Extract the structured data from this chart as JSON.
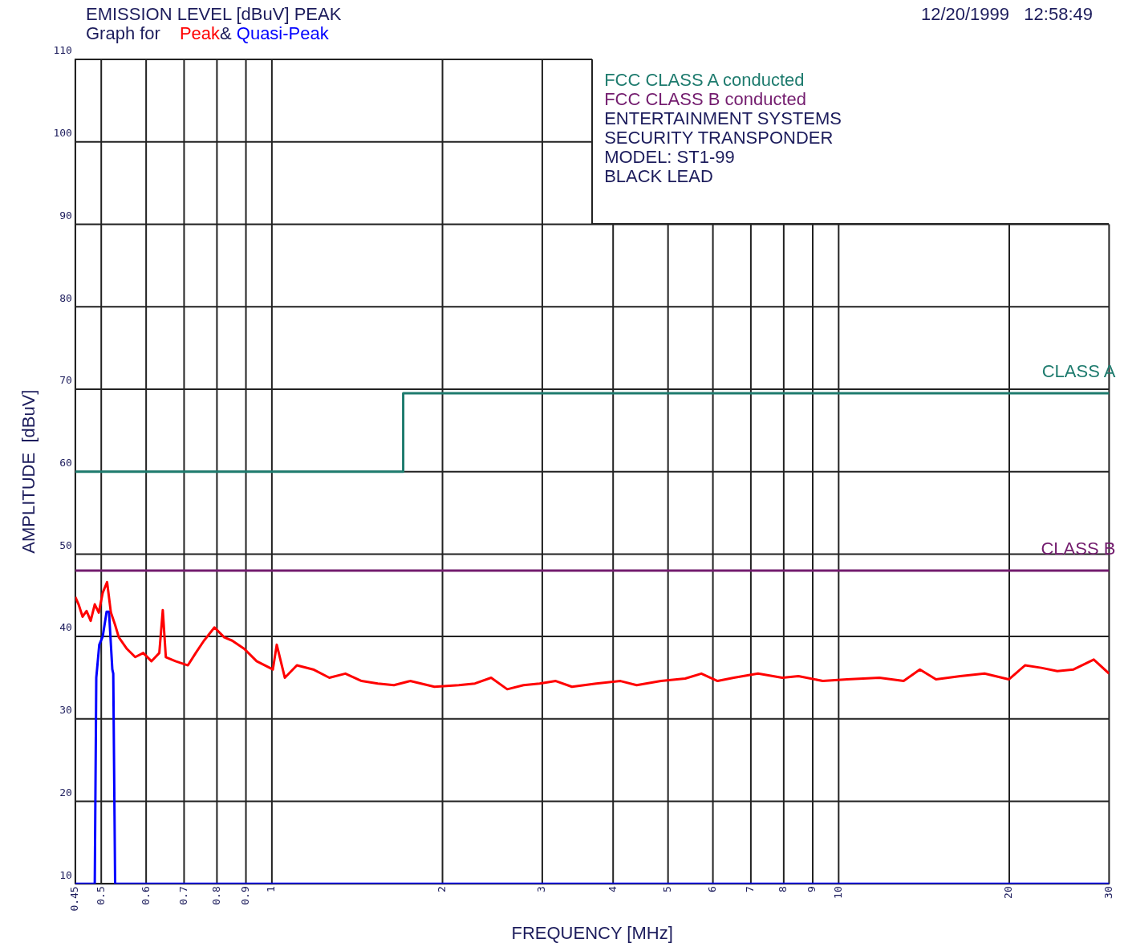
{
  "chart_data": {
    "type": "line",
    "title": "EMISSION LEVEL [dBuV] PEAK",
    "subtitle": "Graph for",
    "xlabel": "FREQUENCY [MHz]",
    "ylabel": "AMPLITUDE  [dBuV]",
    "log": "x",
    "grid": true,
    "legend": false,
    "marker": "none",
    "line_style": "solid",
    "xlim": [
      0.45,
      30
    ],
    "xticks": [
      {
        "value": 0.45,
        "label": "0.45"
      },
      {
        "value": 0.5,
        "label": "0.5"
      },
      {
        "value": 0.6,
        "label": "0.6"
      },
      {
        "value": 0.7,
        "label": "0.7"
      },
      {
        "value": 0.8,
        "label": "0.8"
      },
      {
        "value": 0.9,
        "label": "0.9"
      },
      1,
      2,
      3,
      4,
      5,
      6,
      7,
      8,
      9,
      10,
      20,
      30
    ],
    "ylim": [
      10,
      110
    ],
    "yticks": [
      10,
      20,
      30,
      40,
      50,
      60,
      70,
      80,
      90,
      100,
      110
    ],
    "series": [
      {
        "type": "step",
        "color": "#1e7b6e",
        "x": [
          0.45,
          1.705,
          30
        ],
        "values": [
          60,
          69.5,
          69.5
        ]
      },
      {
        "type": "line",
        "color": "#731c6e",
        "x": [
          0.45,
          30
        ],
        "values": [
          48,
          48
        ]
      },
      {
        "name": "Peak",
        "type": "line",
        "color": "#ff0000",
        "x": [
          0.45,
          0.456,
          0.4635,
          0.471,
          0.479,
          0.487,
          0.495,
          0.503,
          0.512,
          0.52,
          0.529,
          0.537,
          0.555,
          0.574,
          0.593,
          0.613,
          0.633,
          0.642,
          0.65,
          0.676,
          0.711,
          0.734,
          0.759,
          0.792,
          0.824,
          0.851,
          0.894,
          0.94,
          1.004,
          1.02,
          1.054,
          1.107,
          1.183,
          1.263,
          1.348,
          1.44,
          1.538,
          1.642,
          1.754,
          1.936,
          2.137,
          2.282,
          2.437,
          2.602,
          2.779,
          2.968,
          3.169,
          3.384,
          3.735,
          4.122,
          4.402,
          4.858,
          5.361,
          5.725,
          6.115,
          6.53,
          7.206,
          7.953,
          8.494,
          9.374,
          10.35,
          11.8,
          13.02,
          13.91,
          14.85,
          16.39,
          18.09,
          19.96,
          21.32,
          22.77,
          24.31,
          25.97,
          28.19,
          30
        ],
        "values": [
          44.8,
          43.9,
          42.4,
          43.1,
          41.9,
          43.9,
          42.9,
          45.3,
          46.6,
          42.9,
          41.4,
          39.9,
          38.5,
          37.5,
          38,
          37,
          38,
          43.2,
          37.5,
          37,
          36.5,
          38,
          39.5,
          41.1,
          39.9,
          39.5,
          38.5,
          37,
          36,
          39,
          35,
          36.5,
          36,
          35,
          35.5,
          34.6,
          34.3,
          34.1,
          34.6,
          33.9,
          34.1,
          34.3,
          35,
          33.6,
          34.1,
          34.3,
          34.6,
          33.9,
          34.3,
          34.6,
          34.1,
          34.6,
          34.9,
          35.5,
          34.6,
          35,
          35.5,
          35,
          35.2,
          34.6,
          34.8,
          35,
          34.6,
          36,
          34.8,
          35.2,
          35.5,
          34.8,
          36.5,
          36.2,
          35.8,
          36,
          37.2,
          35.5
        ]
      },
      {
        "name": "Quasi-Peak",
        "type": "line",
        "color": "#0000ff",
        "x": [
          0.45,
          0.487,
          0.49,
          0.496,
          0.503,
          0.511,
          0.516,
          0.523,
          0.525,
          0.529,
          30
        ],
        "values": [
          10,
          10,
          35,
          39,
          40,
          43,
          43,
          36,
          35.5,
          10,
          10
        ]
      }
    ],
    "annotations": [
      "12/20/1999   12:58:49",
      "&",
      "FCC CLASS A conducted",
      "FCC CLASS B conducted",
      "ENTERTAINMENT SYSTEMS",
      "SECURITY TRANSPONDER",
      "MODEL: ST1-99",
      "BLACK LEAD",
      {
        "text": "CLASS A",
        "x": 30,
        "y": 69.5
      },
      {
        "text": "CLASS B",
        "x": 30,
        "y": 48
      }
    ]
  }
}
